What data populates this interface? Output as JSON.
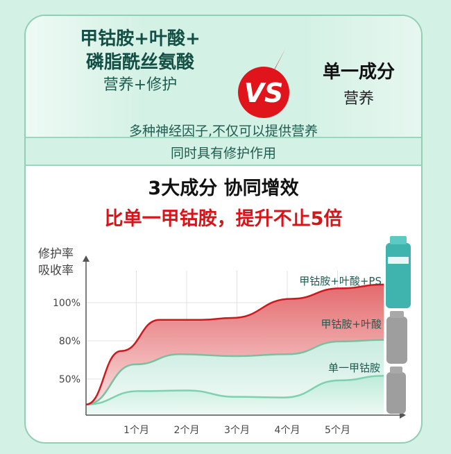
{
  "header": {
    "left_title_line1": "甲钴胺+叶酸+",
    "left_title_line2": "磷脂酰丝氨酸",
    "left_subtitle": "营养+修护",
    "vs_label": "VS",
    "right_title": "单一成分",
    "right_subtitle": "营养",
    "desc_line1": "多种神经因子,不仅可以提供营养",
    "desc_line2": "同时具有修护作用",
    "headline": "3大成分 协同增效",
    "subheadline": "比单一甲钴胺，提升不止5倍"
  },
  "colors": {
    "accent_red": "#d7141a",
    "teal": "#134f45",
    "green_line": "#7cc4a4",
    "background": "#d4f1e5"
  },
  "chart_data": {
    "type": "area",
    "ylabel_line1": "修护率",
    "ylabel_line2": "吸收率",
    "yticks": [
      "50%",
      "80%",
      "100%"
    ],
    "xticks": [
      "1个月",
      "2个月",
      "3个月",
      "4个月",
      "5个月"
    ],
    "grid": true,
    "series": [
      {
        "name": "甲钴胺+叶酸+PS",
        "color": "#c91a1f",
        "x": [
          0,
          0.7,
          1.46,
          2.29,
          2.9,
          4.08,
          5.05,
          5.92
        ],
        "y": [
          30,
          72,
          91,
          91,
          92,
          102,
          107.5,
          109.5
        ]
      },
      {
        "name": "甲钴胺+叶酸",
        "color": "#7cbf9f",
        "x": [
          0,
          0.98,
          1.87,
          2.98,
          4.01,
          5.05,
          5.92
        ],
        "y": [
          30,
          61.5,
          69.5,
          68,
          69.5,
          79.5,
          80.5
        ]
      },
      {
        "name": "单一甲钴胺",
        "color": "#7fd0ae",
        "x": [
          0,
          1.05,
          2.01,
          2.98,
          3.94,
          5.05,
          5.92
        ],
        "y": [
          30,
          40.5,
          41,
          36,
          35.5,
          49,
          52.5
        ]
      }
    ]
  }
}
